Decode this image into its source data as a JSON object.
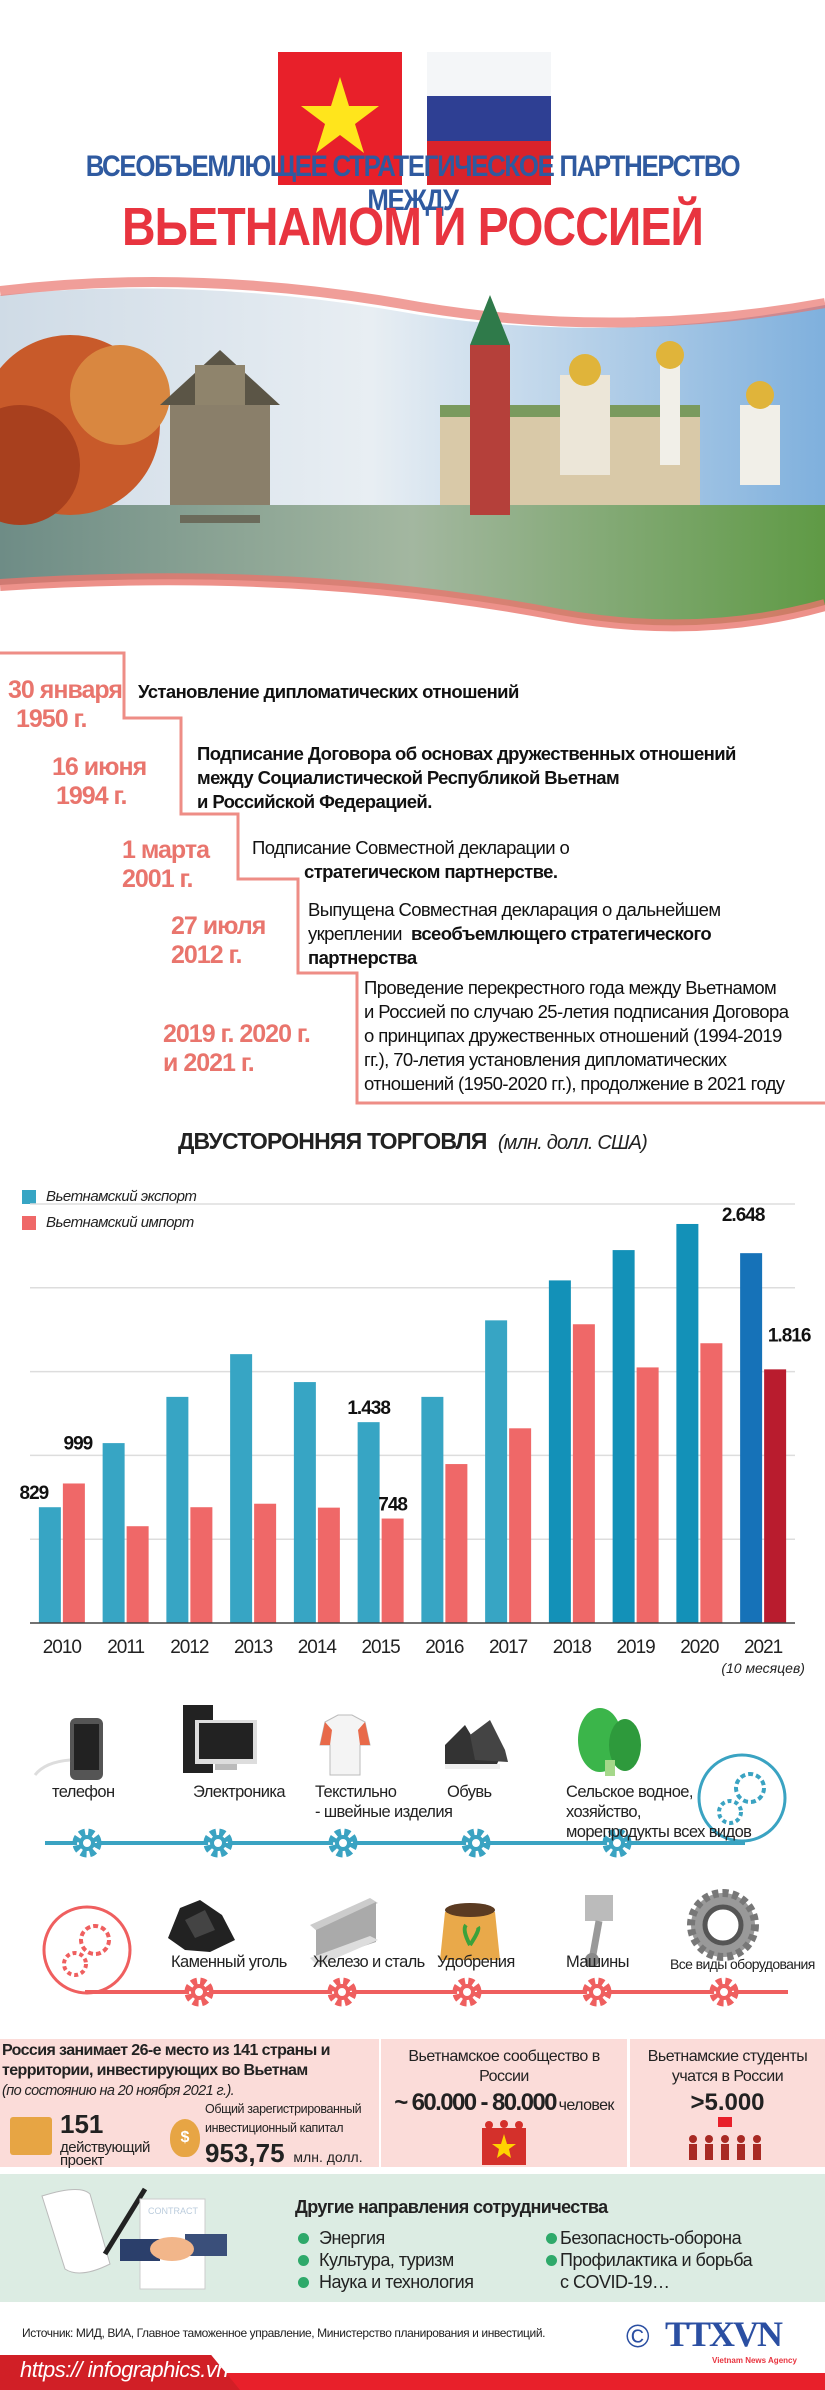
{
  "header": {
    "subtitle": "ВСЕОБЪЕМЛЮЩЕЕ СТРАТЕГИЧЕСКОЕ ПАРТНЕРСТВО МЕЖДУ",
    "title": "ВЬЕТНАМОМ И РОССИЕЙ"
  },
  "colors": {
    "accent_red": "#e8343f",
    "blue": "#2f5aa0",
    "timeline": "#e9756d",
    "export": "#37a5c4",
    "import": "#ef6868"
  },
  "timeline": [
    {
      "date1": "30 января",
      "date2": "1950 г.",
      "text": "Установление дипломатических отношений"
    },
    {
      "date1": "16 июня",
      "date2": "1994 г.",
      "line1": "Подписание Договора об основах дружественных отношений",
      "line2": "между Социалистической Республикой Вьетнам",
      "line3": "и Российской Федерацией."
    },
    {
      "date1": "1 марта",
      "date2": "2001 г.",
      "line1": "Подписание Совместной декларации о",
      "line2": "стратегическом партнерстве."
    },
    {
      "date1": "27 июля",
      "date2": "2012 г.",
      "line1": "Выпущена Совместная декларация о дальнейшем",
      "line2a": "укреплении",
      "line2b": "всеобъемлющего стратегического",
      "line3": "партнерства"
    },
    {
      "date1": "2019 г. 2020 г.",
      "date2": "и 2021 г.",
      "lines": [
        "Проведение перекрестного года между Вьетнамом",
        "и Россией по случаю 25-летия подписания Договора",
        "о принципах дружественных отношений (1994-2019",
        "гг.), 70-летия установления дипломатических",
        "отношений (1950-2020 гг.), продолжение в 2021 году"
      ]
    }
  ],
  "chart_data": {
    "type": "bar",
    "title": "ДВУСТОРОННЯЯ ТОРГОВЛЯ",
    "unit": "(млн. долл. США)",
    "categories": [
      "2010",
      "2011",
      "2012",
      "2013",
      "2014",
      "2015",
      "2016",
      "2017",
      "2018",
      "2019",
      "2020",
      "2021"
    ],
    "category_note": "(10 месяцев)",
    "series": [
      {
        "name": "Вьетнамский экспорт",
        "values": [
          829,
          1288,
          1619,
          1925,
          1725,
          1438,
          1619,
          2167,
          2453,
          2670,
          2857,
          2648
        ]
      },
      {
        "name": "Вьетнамский импорт",
        "values": [
          999,
          693,
          829,
          854,
          826,
          748,
          1138,
          1394,
          2139,
          1830,
          2003,
          1816
        ]
      }
    ],
    "data_labels": [
      {
        "series": 0,
        "index": 0,
        "text": "829"
      },
      {
        "series": 1,
        "index": 0,
        "text": "999"
      },
      {
        "series": 0,
        "index": 5,
        "text": "1.438"
      },
      {
        "series": 1,
        "index": 5,
        "text": "748"
      },
      {
        "series": 0,
        "index": 11,
        "text": "2.648"
      },
      {
        "series": 1,
        "index": 11,
        "text": "1.816"
      }
    ],
    "ylim": [
      0,
      3000
    ],
    "grid": true,
    "gridstep": 600,
    "legend": "top-left"
  },
  "exports": [
    {
      "label": "телефон",
      "icon": "phone-icon"
    },
    {
      "label": "Электроника",
      "icon": "computer-icon"
    },
    {
      "label": "Текстильно",
      "label2": "- швейные изделия",
      "icon": "shirt-icon"
    },
    {
      "label": "Обувь",
      "icon": "shoes-icon"
    },
    {
      "label": "Сельское водное,",
      "label2": " хозяйство,",
      "label3": "морепродукты всех видов",
      "icon": "vegetable-icon"
    }
  ],
  "imports": [
    {
      "label": "Каменный уголь",
      "icon": "coal-icon"
    },
    {
      "label": "Железо и сталь",
      "icon": "steel-beam-icon"
    },
    {
      "label": "Удобрения",
      "icon": "fertilizer-bag-icon"
    },
    {
      "label": "Машины",
      "icon": "piston-icon"
    },
    {
      "label": "Все виды оборудования",
      "icon": "gear-wheel-icon"
    }
  ],
  "investment": {
    "line1": "Россия занимает 26-е место из 141 страны и",
    "line2": "территории, инвестирующих во Вьетнам",
    "note": "(по состоянию на 20 ноября 2021 г.).",
    "projects": "151",
    "projects_l1": "действующий",
    "projects_l2": "проект",
    "capital_l1": "Общий зарегистрированный",
    "capital_l2": "инвестиционный капитал",
    "capital": "953,75",
    "capital_unit": "млн. долл."
  },
  "community": {
    "title1": "Вьетнамское сообщество в",
    "title2": "России",
    "value": "~ 60.000 - 80.000",
    "unit": "человек"
  },
  "students": {
    "title1": "Вьетнамские студенты",
    "title2": "учатся в России",
    "value": ">5.000"
  },
  "cooperation": {
    "title": "Другие направления сотрудничества",
    "left": [
      "Энергия",
      "Культура, туризм",
      "Наука и технология"
    ],
    "right": [
      "Безопасность-оборона",
      "Профилактика и борьба",
      "с COVID-19…"
    ],
    "contract_word": "CONTRACT"
  },
  "footer": {
    "source": "Источник: МИД, ВИА, Главное таможенное управление, Министерство планирования и инвестиций.",
    "url": "https:// infographics.vn",
    "logo": "TTXVN",
    "logo_sub": "Vietnam News Agency",
    "copyright": "©"
  }
}
